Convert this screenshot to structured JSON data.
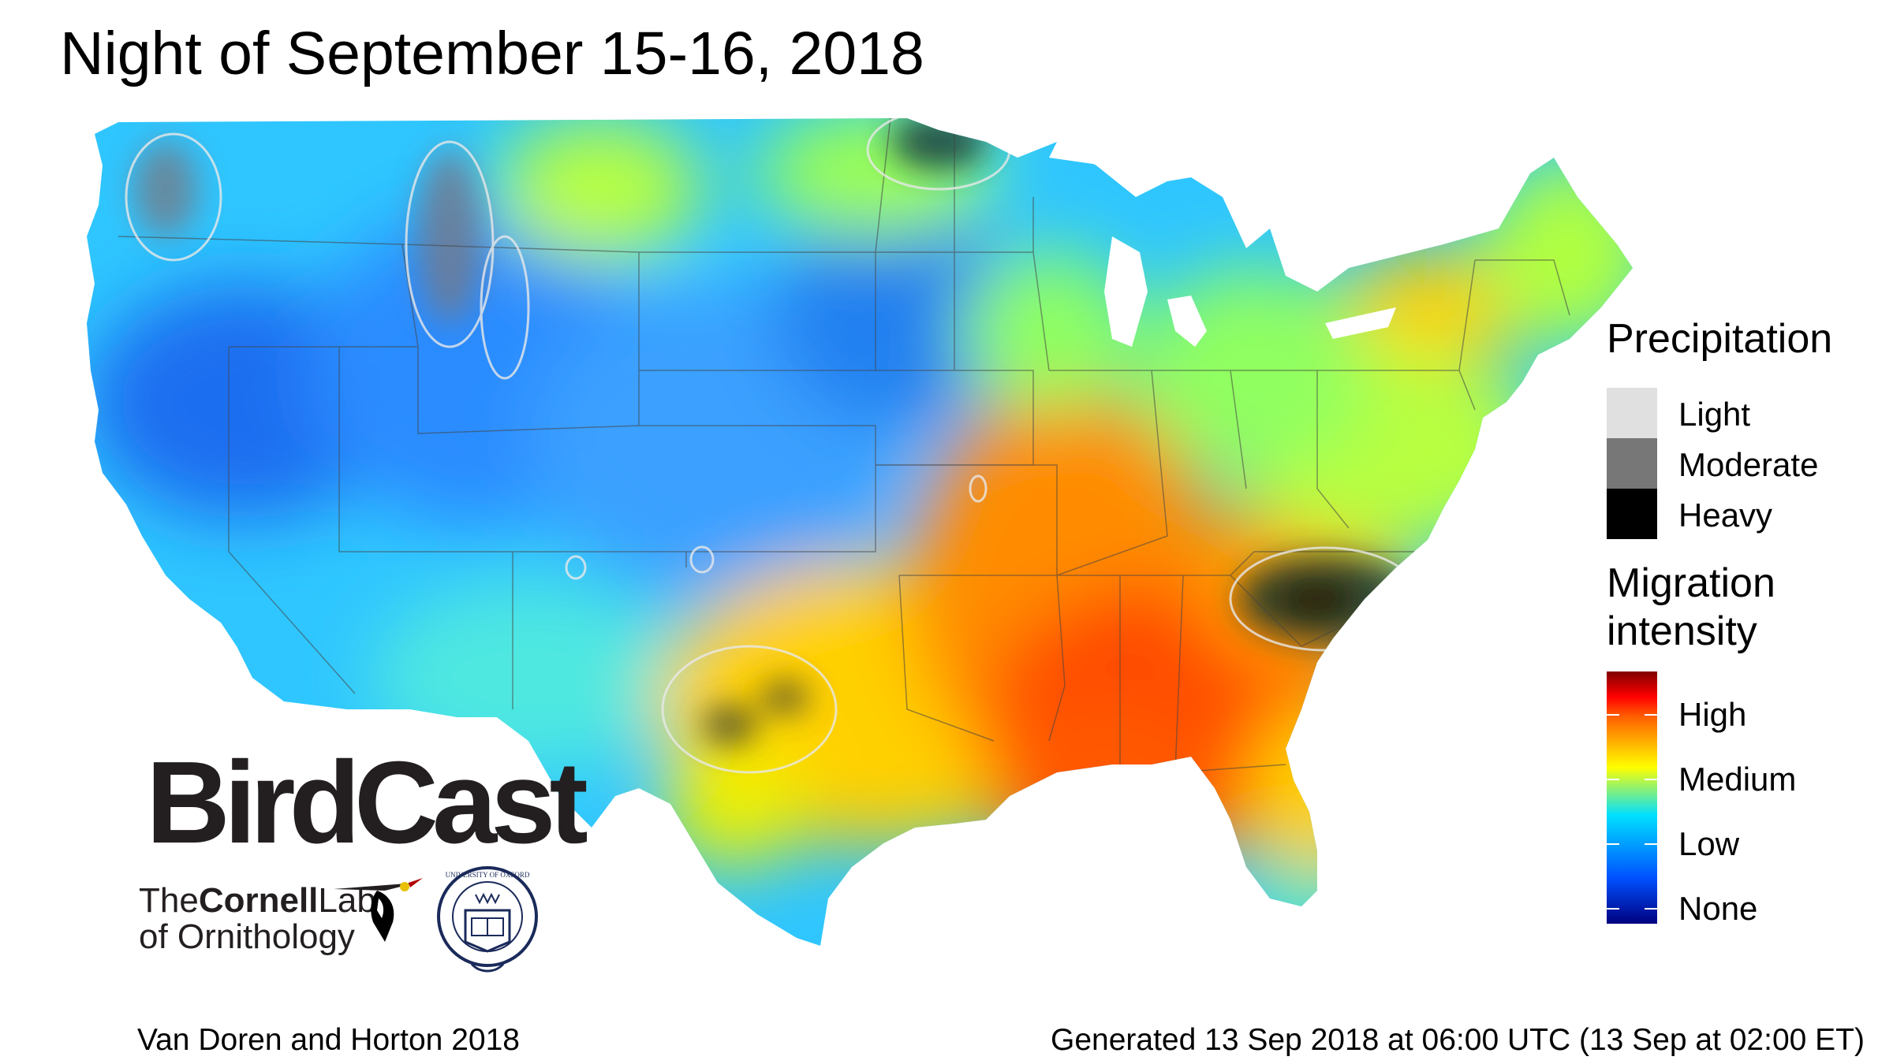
{
  "title": "Night of September 15-16, 2018",
  "legend": {
    "precipitation": {
      "title": "Precipitation",
      "items": [
        {
          "label": "Light",
          "color": "#e0e0e0"
        },
        {
          "label": "Moderate",
          "color": "#777777"
        },
        {
          "label": "Heavy",
          "color": "#000000"
        }
      ]
    },
    "migration": {
      "title_line1": "Migration",
      "title_line2": "intensity",
      "levels": [
        "High",
        "Medium",
        "Low",
        "None"
      ]
    }
  },
  "logos": {
    "birdcast": "BirdCast",
    "cornell_the": "The",
    "cornell_name": "Cornell",
    "cornell_lab": "Lab",
    "cornell_line2": "of Ornithology",
    "oxford_ring": "UNIVERSITY OF OXFORD"
  },
  "footer": {
    "credit": "Van Doren and Horton 2018",
    "generated": "Generated 13 Sep 2018 at 06:00 UTC (13 Sep at 02:00 ET)"
  }
}
